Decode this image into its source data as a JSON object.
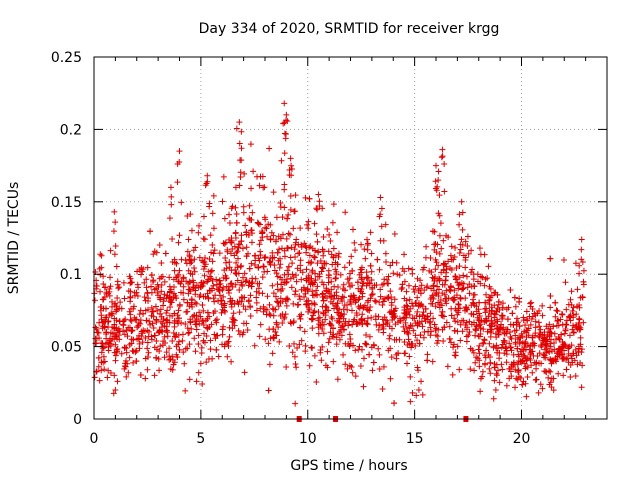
{
  "chart_data": {
    "type": "scatter",
    "title": "Day 334 of 2020, SRMTID for receiver krgg",
    "xlabel": "GPS time / hours",
    "ylabel": "SRMTID / TECUs",
    "xlim": [
      0,
      24
    ],
    "ylim": [
      0,
      0.25
    ],
    "xticks": [
      0,
      5,
      10,
      15,
      20
    ],
    "xtick_labels": [
      "0",
      "5",
      "10",
      "15",
      "20"
    ],
    "yticks": [
      0,
      0.05,
      0.1,
      0.15,
      0.2,
      0.25
    ],
    "ytick_labels": [
      "0",
      "0.05",
      "0.1",
      "0.15",
      "0.2",
      "0.25"
    ],
    "grid": true,
    "marker": "+",
    "color": "#e00000",
    "x_range_of_data": [
      0,
      22.9
    ],
    "trend": [
      {
        "x": 0.0,
        "y": 0.068
      },
      {
        "x": 1.0,
        "y": 0.062
      },
      {
        "x": 2.0,
        "y": 0.07
      },
      {
        "x": 3.0,
        "y": 0.072
      },
      {
        "x": 4.0,
        "y": 0.078
      },
      {
        "x": 5.0,
        "y": 0.082
      },
      {
        "x": 6.0,
        "y": 0.092
      },
      {
        "x": 7.0,
        "y": 0.105
      },
      {
        "x": 8.0,
        "y": 0.102
      },
      {
        "x": 9.0,
        "y": 0.1
      },
      {
        "x": 10.0,
        "y": 0.092
      },
      {
        "x": 11.0,
        "y": 0.082
      },
      {
        "x": 12.0,
        "y": 0.074
      },
      {
        "x": 13.0,
        "y": 0.078
      },
      {
        "x": 14.0,
        "y": 0.075
      },
      {
        "x": 15.0,
        "y": 0.072
      },
      {
        "x": 16.0,
        "y": 0.085
      },
      {
        "x": 17.0,
        "y": 0.09
      },
      {
        "x": 18.0,
        "y": 0.07
      },
      {
        "x": 19.0,
        "y": 0.055
      },
      {
        "x": 20.0,
        "y": 0.05
      },
      {
        "x": 21.0,
        "y": 0.048
      },
      {
        "x": 22.0,
        "y": 0.052
      },
      {
        "x": 22.9,
        "y": 0.068
      }
    ],
    "peaks": [
      {
        "x": 0.95,
        "y": 0.143
      },
      {
        "x": 3.6,
        "y": 0.16
      },
      {
        "x": 4.0,
        "y": 0.185
      },
      {
        "x": 5.3,
        "y": 0.168
      },
      {
        "x": 6.8,
        "y": 0.205
      },
      {
        "x": 6.9,
        "y": 0.187
      },
      {
        "x": 8.9,
        "y": 0.218
      },
      {
        "x": 9.0,
        "y": 0.21
      },
      {
        "x": 9.2,
        "y": 0.18
      },
      {
        "x": 10.5,
        "y": 0.155
      },
      {
        "x": 13.4,
        "y": 0.153
      },
      {
        "x": 16.0,
        "y": 0.175
      },
      {
        "x": 16.3,
        "y": 0.186
      },
      {
        "x": 16.1,
        "y": 0.165
      },
      {
        "x": 17.2,
        "y": 0.15
      },
      {
        "x": 22.8,
        "y": 0.117
      }
    ],
    "lows": [
      {
        "x": 1.0,
        "y": 0.02
      },
      {
        "x": 2.4,
        "y": 0.028
      },
      {
        "x": 4.8,
        "y": 0.026
      },
      {
        "x": 9.4,
        "y": 0.043
      },
      {
        "x": 14.8,
        "y": 0.012
      },
      {
        "x": 15.2,
        "y": 0.02
      },
      {
        "x": 18.7,
        "y": 0.014
      },
      {
        "x": 20.8,
        "y": 0.018
      },
      {
        "x": 21.4,
        "y": 0.022
      }
    ],
    "axis_markers_x": [
      9.6,
      11.3,
      17.4
    ]
  }
}
